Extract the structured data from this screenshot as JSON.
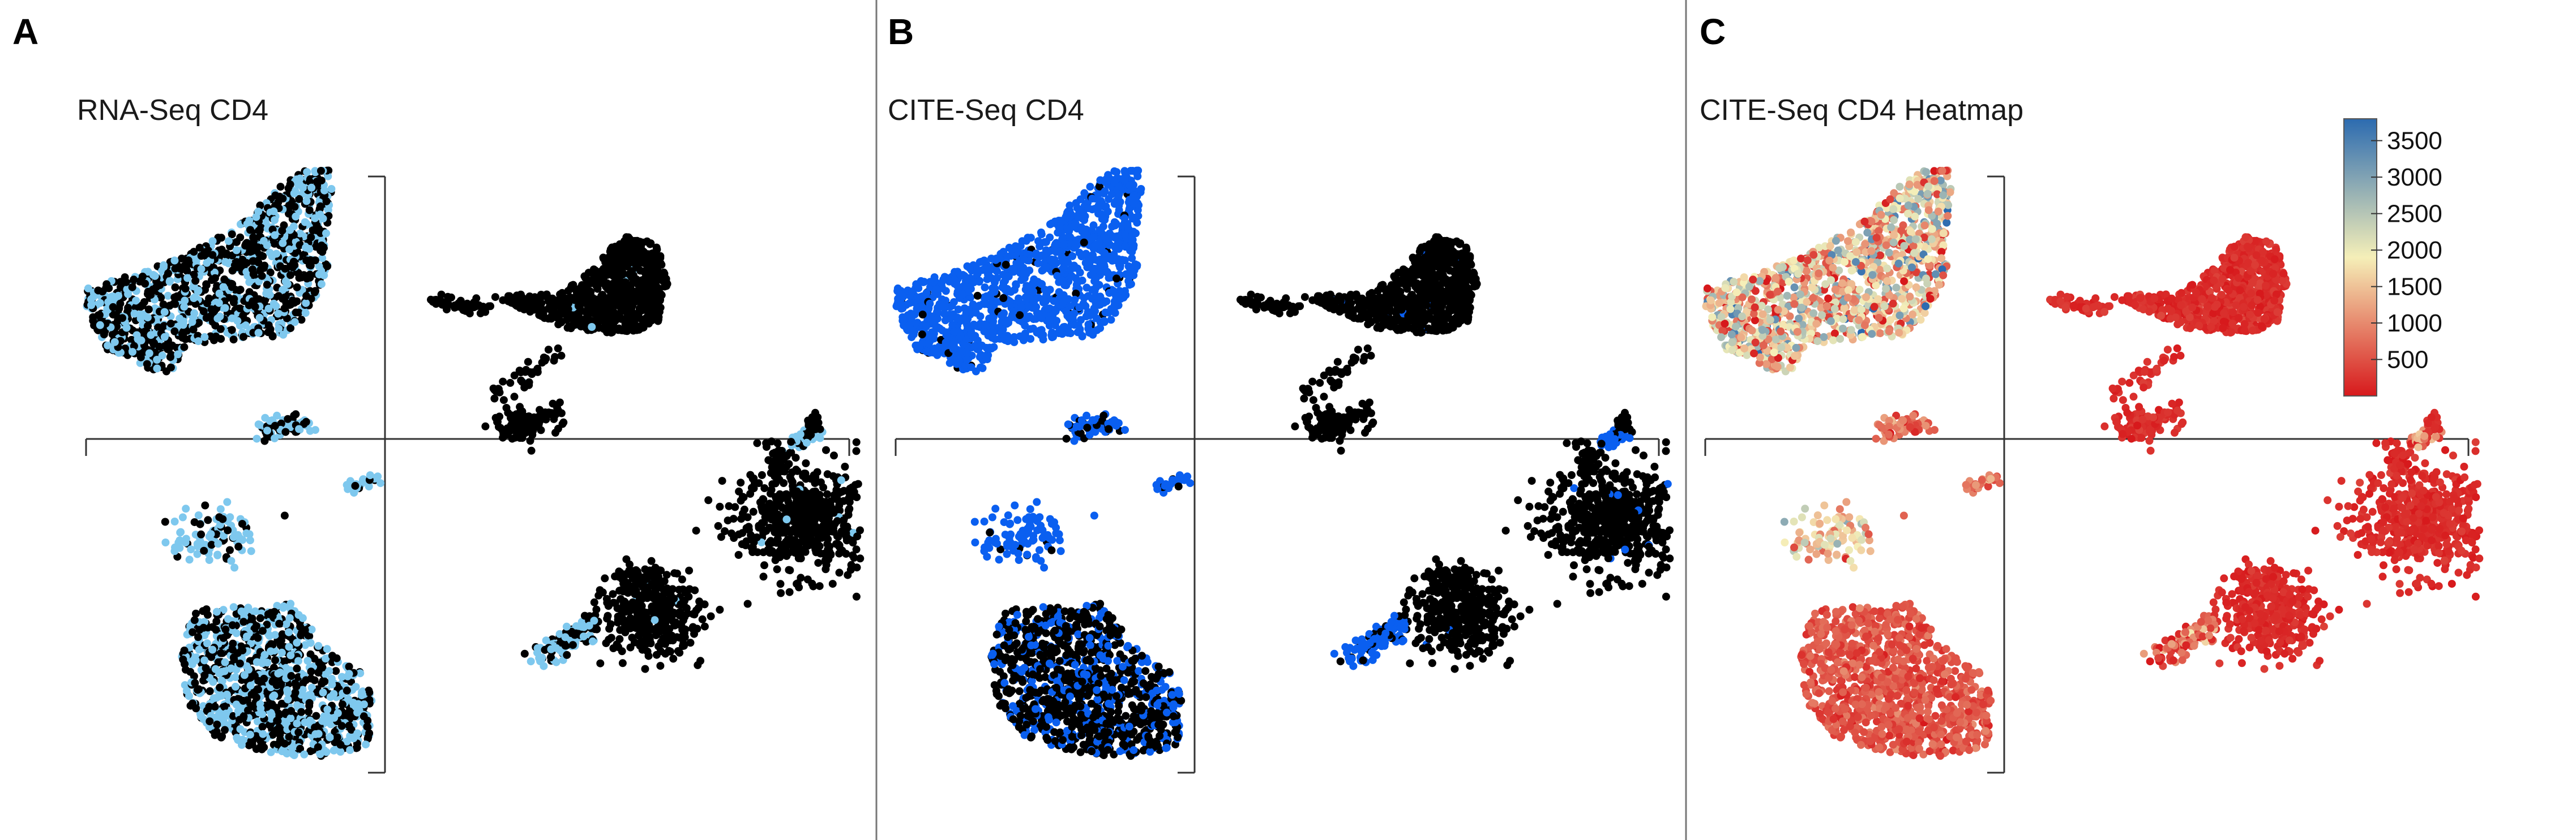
{
  "figure": {
    "panels": [
      {
        "letter": "A",
        "title": "RNA-Seq CD4"
      },
      {
        "letter": "B",
        "title": "CITE-Seq CD4"
      },
      {
        "letter": "C",
        "title": "CITE-Seq CD4 Heatmap"
      }
    ]
  },
  "colors": {
    "background": "#ffffff",
    "negative": "#000000",
    "rna_positive": "#7ec8ee",
    "cite_positive": "#0a5ff0",
    "heat_low": "#d7191c",
    "heat_mid": "#f5efb8",
    "heat_high": "#2c6bb0"
  },
  "chart_data": [
    {
      "type": "scatter",
      "title": "RNA-Seq CD4",
      "series": [
        {
          "name": "",
          "color": "#7ec8ee"
        },
        {
          "name": "",
          "color": "#000000"
        }
      ],
      "xlabel": "",
      "ylabel": "",
      "grid": false
    },
    {
      "type": "scatter",
      "title": "CITE-Seq CD4",
      "series": [
        {
          "name": "",
          "color": "#0a5ff0"
        },
        {
          "name": "",
          "color": "#000000"
        }
      ],
      "xlabel": "",
      "ylabel": "",
      "grid": false
    },
    {
      "type": "scatter",
      "title": "CITE-Seq CD4 Heatmap",
      "colorbar": {
        "ticks": [
          "3500",
          "3000",
          "2500",
          "2000",
          "1500",
          "1000",
          "500"
        ],
        "tick_values": [
          3500,
          3000,
          2500,
          2000,
          1500,
          1000,
          500
        ],
        "range": [
          0,
          3800
        ],
        "colors": [
          "#d7191c",
          "#f5efb8",
          "#2c6bb0"
        ],
        "placement": "top-right"
      },
      "xlabel": "",
      "ylabel": "",
      "grid": false
    }
  ]
}
